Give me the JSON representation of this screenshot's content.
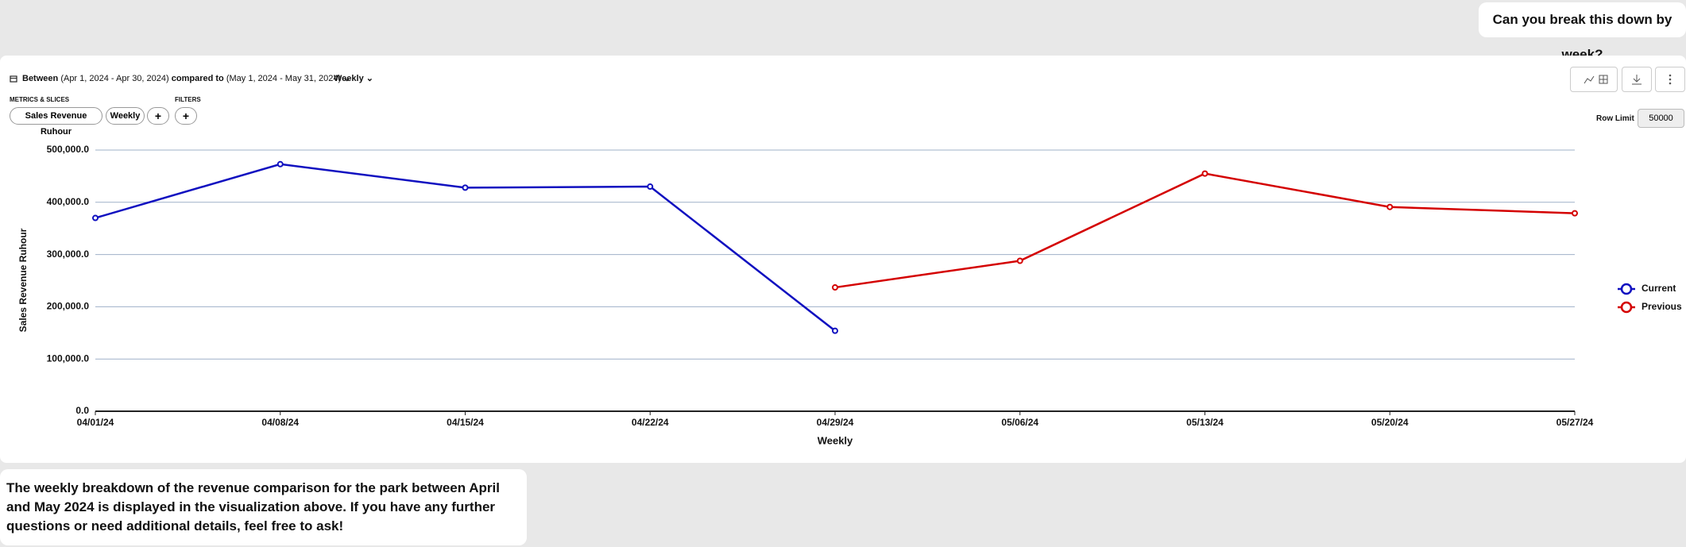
{
  "user_message": "Can you break this down by week?",
  "toolbar": {
    "between": "Between",
    "range_current": "(Apr 1, 2024 - Apr 30, 2024)",
    "compared_to": "compared to",
    "range_previous": "(May 1, 2024 - May 31, 2024)",
    "granularity": "Weekly",
    "metrics_heading": "METRICS & SLICES",
    "filters_heading": "FILTERS",
    "metric_pill": "Sales Revenue Ruhour",
    "slice_pill": "Weekly",
    "add_metric": "+",
    "add_filter": "+",
    "row_limit_label": "Row Limit",
    "row_limit": "50000"
  },
  "chart_data": {
    "type": "line",
    "y_label": "Sales Revenue Ruhour",
    "x_label": "Weekly",
    "categories": [
      "04/01/24",
      "04/08/24",
      "04/15/24",
      "04/22/24",
      "04/29/24",
      "05/06/24",
      "05/13/24",
      "05/20/24",
      "05/27/24"
    ],
    "series": [
      {
        "name": "Current",
        "color": "#1010c0",
        "values": [
          370000,
          473000,
          428000,
          430000,
          154000,
          null,
          null,
          null,
          null
        ]
      },
      {
        "name": "Previous",
        "color": "#d40000",
        "values": [
          null,
          null,
          null,
          null,
          237000,
          288000,
          455000,
          391000,
          379000
        ]
      }
    ],
    "ylim": [
      0,
      500000
    ],
    "yticks": [
      {
        "value": 0,
        "label": "0.0"
      },
      {
        "value": 100000,
        "label": "100,000.0"
      },
      {
        "value": 200000,
        "label": "200,000.0"
      },
      {
        "value": 300000,
        "label": "300,000.0"
      },
      {
        "value": 400000,
        "label": "400,000.0"
      },
      {
        "value": 500000,
        "label": "500,000.0"
      }
    ],
    "grid": true,
    "legend": "right"
  },
  "assistant_message": "The weekly breakdown of the revenue comparison for the park between April and May 2024 is displayed in the visualization above. If you have any further questions or need additional details, feel free to ask!"
}
